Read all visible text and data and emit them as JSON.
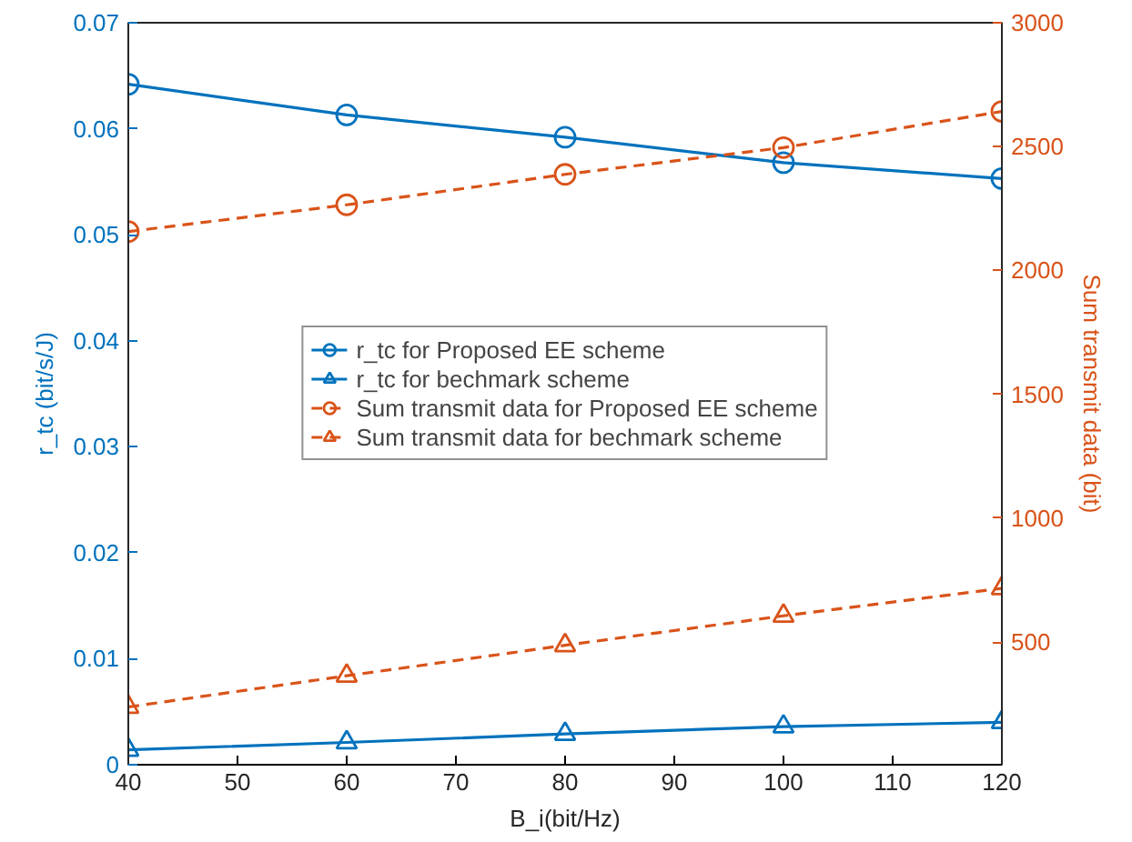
{
  "chart_data": {
    "type": "line",
    "xlabel": "B_i(bit/Hz)",
    "ylabel": "r_tc (bit/s/J)",
    "y2label": "Sum transmit data (bit)",
    "x": [
      40,
      60,
      80,
      100,
      120
    ],
    "xlim": [
      40,
      120
    ],
    "xticks": [
      40,
      50,
      60,
      70,
      80,
      90,
      100,
      110,
      120
    ],
    "ylim": [
      0,
      0.07
    ],
    "yticks": [
      0,
      0.01,
      0.02,
      0.03,
      0.04,
      0.05,
      0.06,
      0.07
    ],
    "y2lim": [
      5,
      3000
    ],
    "y2ticks": [
      500,
      1000,
      1500,
      2000,
      2500,
      3000
    ],
    "grid": false,
    "legend": "center",
    "series": [
      {
        "name": "r_tc for Proposed EE scheme",
        "color": "#0072bd",
        "marker": "circle",
        "line_style": "solid",
        "values": [
          0.0642,
          0.0613,
          0.0592,
          0.0568,
          0.0553
        ]
      },
      {
        "name": "r_tc for bechmark scheme",
        "color": "#0072bd",
        "marker": "triangle",
        "line_style": "solid",
        "values": [
          0.0014,
          0.0021,
          0.0029,
          0.0036,
          0.004
        ]
      },
      {
        "name": "Sum transmit data for Proposed EE scheme",
        "color": "#d95319",
        "marker": "circle",
        "line_style": "dashed",
        "axis": "y2",
        "values": [
          2157,
          2265,
          2388,
          2496,
          2642
        ]
      },
      {
        "name": "Sum transmit data for bechmark scheme",
        "color": "#d95319",
        "marker": "triangle",
        "line_style": "dashed",
        "axis": "y2",
        "values": [
          238,
          364,
          487,
          606,
          717
        ]
      }
    ]
  }
}
